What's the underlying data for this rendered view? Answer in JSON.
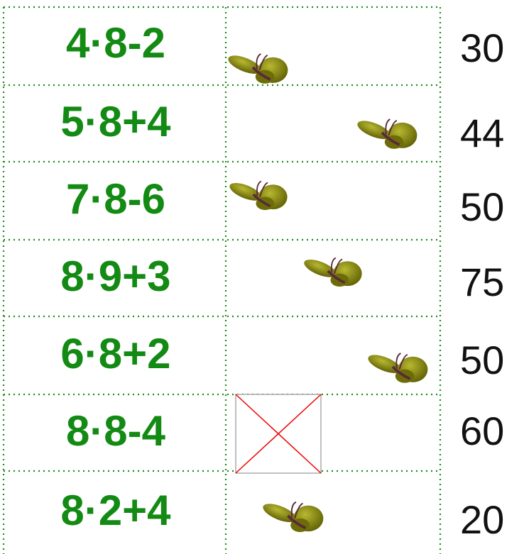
{
  "rows": [
    {
      "expression": "4·8-2",
      "answer": 30
    },
    {
      "expression": "5·8+4",
      "answer": 44
    },
    {
      "expression": "7·8-6",
      "answer": 50
    },
    {
      "expression": "8·9+3",
      "answer": 75
    },
    {
      "expression": "6·8+2",
      "answer": 50
    },
    {
      "expression": "8·8-4",
      "answer": 60
    },
    {
      "expression": "8·2+4",
      "answer": 20
    }
  ]
}
